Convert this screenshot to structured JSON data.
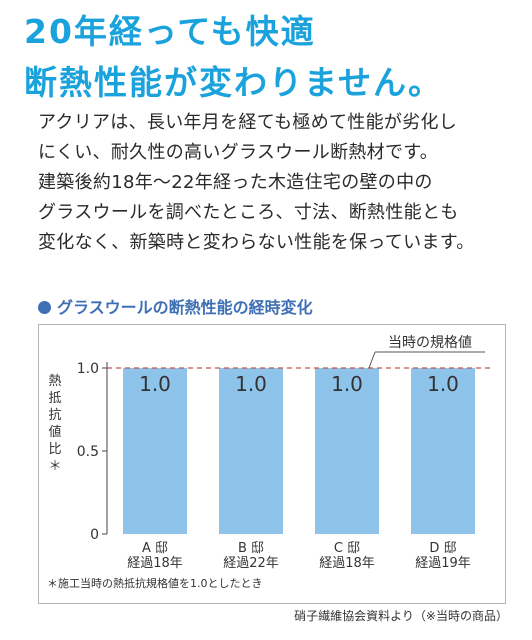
{
  "headline": {
    "line1": "20年経っても快適",
    "line2": "断熱性能が変わりません。"
  },
  "body_lines": [
    "アクリアは、長い年月を経ても極めて性能が劣化し",
    "にくい、耐久性の高いグラスウール断熱材です。",
    "建築後約18年〜22年経った木造住宅の壁の中の",
    "グラスウールを調べたところ、寸法、断熱性能とも",
    "変化なく、新築時と変わらない性能を保っています。"
  ],
  "chart_heading": "グラスウールの断熱性能の経時変化",
  "chart_data": {
    "type": "bar",
    "categories": [
      [
        "A 邸",
        "経過18年"
      ],
      [
        "B 邸",
        "経過22年"
      ],
      [
        "C 邸",
        "経過18年"
      ],
      [
        "D 邸",
        "経過19年"
      ]
    ],
    "values": [
      1.0,
      1.0,
      1.0,
      1.0
    ],
    "value_labels": [
      "1.0",
      "1.0",
      "1.0",
      "1.0"
    ],
    "ylabel": "熱抵抗値比＊",
    "ylim": [
      0,
      1.0
    ],
    "yticks": [
      {
        "value": 1.0,
        "label": "1.0"
      },
      {
        "value": 0.5,
        "label": "0.5"
      },
      {
        "value": 0,
        "label": "0"
      }
    ],
    "reference_line": {
      "value": 1.0,
      "label": "当時の規格値"
    },
    "bar_color": "#8fc4ea",
    "reference_color": "#c0504d"
  },
  "footnote": "＊施工当時の熱抵抗規格値を1.0としたとき",
  "source": "硝子繊維協会資料より（※当時の商品）"
}
